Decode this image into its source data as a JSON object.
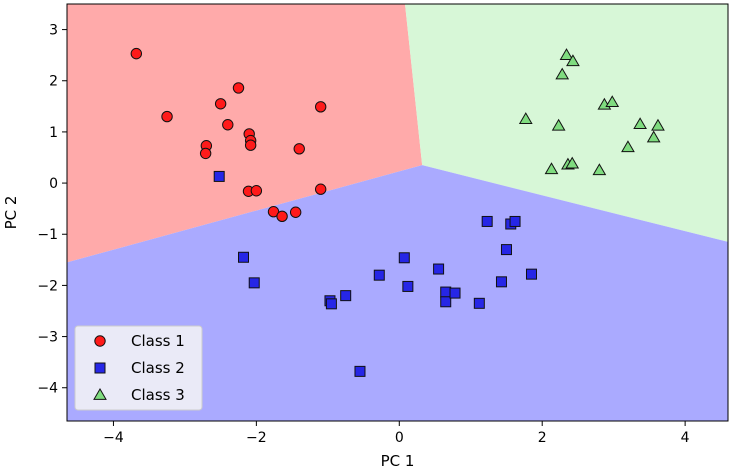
{
  "chart_data": {
    "type": "scatter",
    "title": "",
    "xlabel": "PC 1",
    "ylabel": "PC 2",
    "xlim": [
      -4.65,
      4.6
    ],
    "ylim": [
      -4.65,
      3.5
    ],
    "xticks": [
      -4,
      -2,
      0,
      2,
      4
    ],
    "yticks": [
      -4,
      -3,
      -2,
      -1,
      0,
      1,
      2,
      3
    ],
    "grid": false,
    "legend_position": "lower-left",
    "regions": [
      {
        "name": "Class 1",
        "color": "#ffaaaa",
        "polygon": [
          [
            -4.65,
            3.5
          ],
          [
            0.08,
            3.5
          ],
          [
            0.32,
            0.35
          ],
          [
            -4.65,
            -1.55
          ]
        ]
      },
      {
        "name": "Class 3",
        "color": "#d7f7d7",
        "polygon": [
          [
            0.08,
            3.5
          ],
          [
            4.6,
            3.5
          ],
          [
            4.6,
            -1.15
          ],
          [
            0.32,
            0.35
          ]
        ]
      },
      {
        "name": "Class 2",
        "color": "#aaaaff",
        "polygon": [
          [
            -4.65,
            -1.55
          ],
          [
            0.32,
            0.35
          ],
          [
            4.6,
            -1.15
          ],
          [
            4.6,
            -4.65
          ],
          [
            -4.65,
            -4.65
          ]
        ]
      }
    ],
    "series": [
      {
        "name": "Class 1",
        "marker": "circle",
        "color": "#ff1a1a",
        "points": [
          [
            -3.68,
            2.53
          ],
          [
            -3.25,
            1.3
          ],
          [
            -2.7,
            0.73
          ],
          [
            -2.71,
            0.58
          ],
          [
            -2.5,
            1.55
          ],
          [
            -2.4,
            1.14
          ],
          [
            -2.25,
            1.86
          ],
          [
            -2.1,
            0.96
          ],
          [
            -2.08,
            0.83
          ],
          [
            -2.08,
            0.74
          ],
          [
            -2.11,
            -0.16
          ],
          [
            -2.0,
            -0.15
          ],
          [
            -1.1,
            1.49
          ],
          [
            -1.4,
            0.67
          ],
          [
            -1.1,
            -0.12
          ],
          [
            -1.76,
            -0.56
          ],
          [
            -1.64,
            -0.65
          ],
          [
            -1.45,
            -0.57
          ]
        ]
      },
      {
        "name": "Class 2",
        "marker": "square",
        "color": "#2626e6",
        "points": [
          [
            -2.52,
            0.13
          ],
          [
            -2.18,
            -1.45
          ],
          [
            -2.03,
            -1.95
          ],
          [
            -0.97,
            -2.3
          ],
          [
            -0.95,
            -2.36
          ],
          [
            -0.75,
            -2.2
          ],
          [
            -0.28,
            -1.8
          ],
          [
            0.07,
            -1.46
          ],
          [
            0.12,
            -2.02
          ],
          [
            0.55,
            -1.68
          ],
          [
            0.65,
            -2.13
          ],
          [
            0.65,
            -2.32
          ],
          [
            0.78,
            -2.15
          ],
          [
            1.12,
            -2.35
          ],
          [
            1.23,
            -0.75
          ],
          [
            1.43,
            -1.93
          ],
          [
            1.5,
            -1.3
          ],
          [
            1.56,
            -0.8
          ],
          [
            1.62,
            -0.75
          ],
          [
            1.85,
            -1.78
          ],
          [
            -0.55,
            -3.68
          ]
        ]
      },
      {
        "name": "Class 3",
        "marker": "triangle",
        "color": "#7fdc7f",
        "points": [
          [
            1.77,
            1.25
          ],
          [
            2.13,
            0.27
          ],
          [
            2.23,
            1.12
          ],
          [
            2.28,
            2.12
          ],
          [
            2.34,
            2.5
          ],
          [
            2.36,
            0.36
          ],
          [
            2.42,
            0.38
          ],
          [
            2.43,
            2.38
          ],
          [
            2.8,
            0.25
          ],
          [
            2.87,
            1.53
          ],
          [
            2.98,
            1.58
          ],
          [
            3.2,
            0.7
          ],
          [
            3.37,
            1.15
          ],
          [
            3.56,
            0.89
          ],
          [
            3.62,
            1.12
          ]
        ]
      }
    ]
  }
}
